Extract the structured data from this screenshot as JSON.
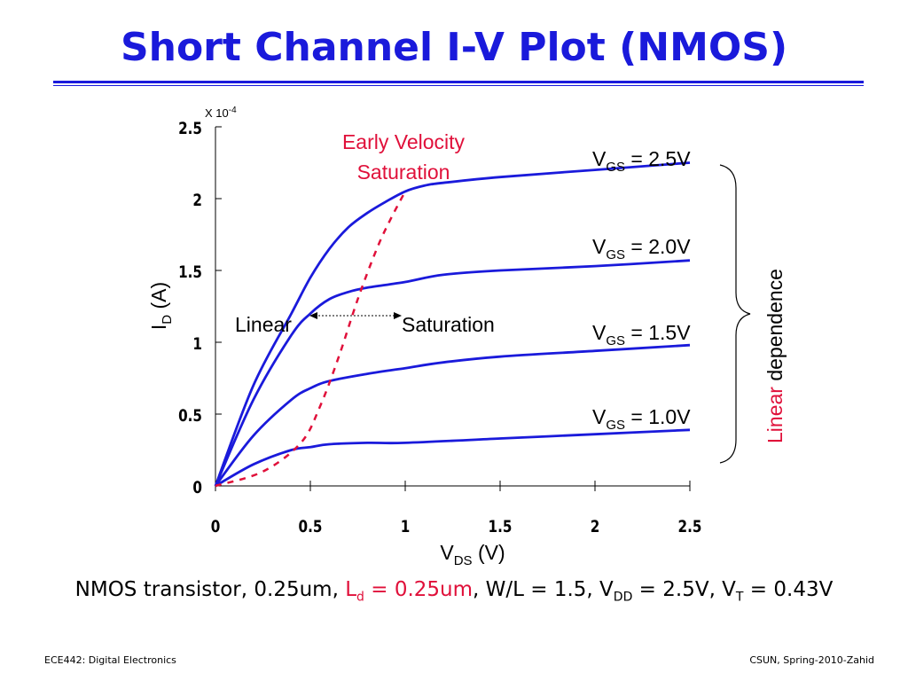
{
  "slide": {
    "title": "Short Channel I-V Plot (NMOS)",
    "caption": {
      "part1": "NMOS transistor, 0.25um, ",
      "ld_main": "L",
      "ld_sub": "d",
      "ld_value": " = 0.25um",
      "part2": ", W/L = 1.5, V",
      "vdd_sub": "DD",
      "part3": " = 2.5V, V",
      "vt_sub": "T",
      "part4": " = 0.43V"
    },
    "footer_left": "ECE442: Digital Electronics",
    "footer_right": "CSUN, Spring-2010-Zahid"
  },
  "chart_data": {
    "type": "line",
    "xlabel_main": "V",
    "xlabel_sub": "DS",
    "xlabel_unit": " (V)",
    "ylabel_main": "I",
    "ylabel_sub": "D",
    "ylabel_unit": " (A)",
    "y_scale_label": "X 10",
    "y_scale_exp": "-4",
    "xlim": [
      0,
      2.5
    ],
    "ylim": [
      0,
      2.5
    ],
    "x_ticks": [
      "0",
      "0.5",
      "1",
      "1.5",
      "2",
      "2.5"
    ],
    "y_ticks": [
      "0",
      "0.5",
      "1",
      "1.5",
      "2",
      "2.5"
    ],
    "colors": {
      "series": "#1a1adb",
      "annotation": "#e0103a",
      "axis": "#000000"
    },
    "series": [
      {
        "label_main": "V",
        "label_sub": "GS",
        "label_value": " = 2.5V",
        "x": [
          0,
          0.2,
          0.4,
          0.5,
          0.6,
          0.7,
          0.8,
          0.9,
          1.0,
          1.1,
          1.2,
          1.5,
          2.0,
          2.5
        ],
        "values": [
          0,
          0.7,
          1.2,
          1.45,
          1.65,
          1.8,
          1.9,
          1.98,
          2.05,
          2.09,
          2.11,
          2.15,
          2.2,
          2.25
        ]
      },
      {
        "label_main": "V",
        "label_sub": "GS",
        "label_value": " = 2.0V",
        "x": [
          0,
          0.2,
          0.4,
          0.5,
          0.6,
          0.7,
          0.8,
          1.0,
          1.2,
          1.5,
          2.0,
          2.5
        ],
        "values": [
          0,
          0.6,
          1.05,
          1.2,
          1.3,
          1.35,
          1.38,
          1.42,
          1.47,
          1.5,
          1.53,
          1.57
        ]
      },
      {
        "label_main": "V",
        "label_sub": "GS",
        "label_value": " = 1.5V",
        "x": [
          0,
          0.2,
          0.4,
          0.5,
          0.6,
          0.8,
          1.0,
          1.2,
          1.5,
          2.0,
          2.5
        ],
        "values": [
          0,
          0.35,
          0.6,
          0.68,
          0.73,
          0.78,
          0.82,
          0.86,
          0.9,
          0.94,
          0.98
        ]
      },
      {
        "label_main": "V",
        "label_sub": "GS",
        "label_value": " = 1.0V",
        "x": [
          0,
          0.2,
          0.4,
          0.5,
          0.6,
          0.8,
          1.0,
          1.5,
          2.0,
          2.5
        ],
        "values": [
          0,
          0.15,
          0.25,
          0.27,
          0.29,
          0.3,
          0.3,
          0.33,
          0.36,
          0.39
        ]
      }
    ],
    "saturation_boundary": {
      "x": [
        0,
        0.25,
        0.45,
        0.55,
        0.65,
        0.75,
        0.85,
        0.92,
        1.0
      ],
      "values": [
        0,
        0.1,
        0.3,
        0.55,
        0.9,
        1.3,
        1.65,
        1.85,
        2.05
      ]
    },
    "annotations": {
      "early_saturation_line1": "Early Velocity",
      "early_saturation_line2": "Saturation",
      "linear": "Linear",
      "saturation": "Saturation",
      "linear_dependence_red": "Linear",
      "linear_dependence_rest": " dependence"
    }
  }
}
